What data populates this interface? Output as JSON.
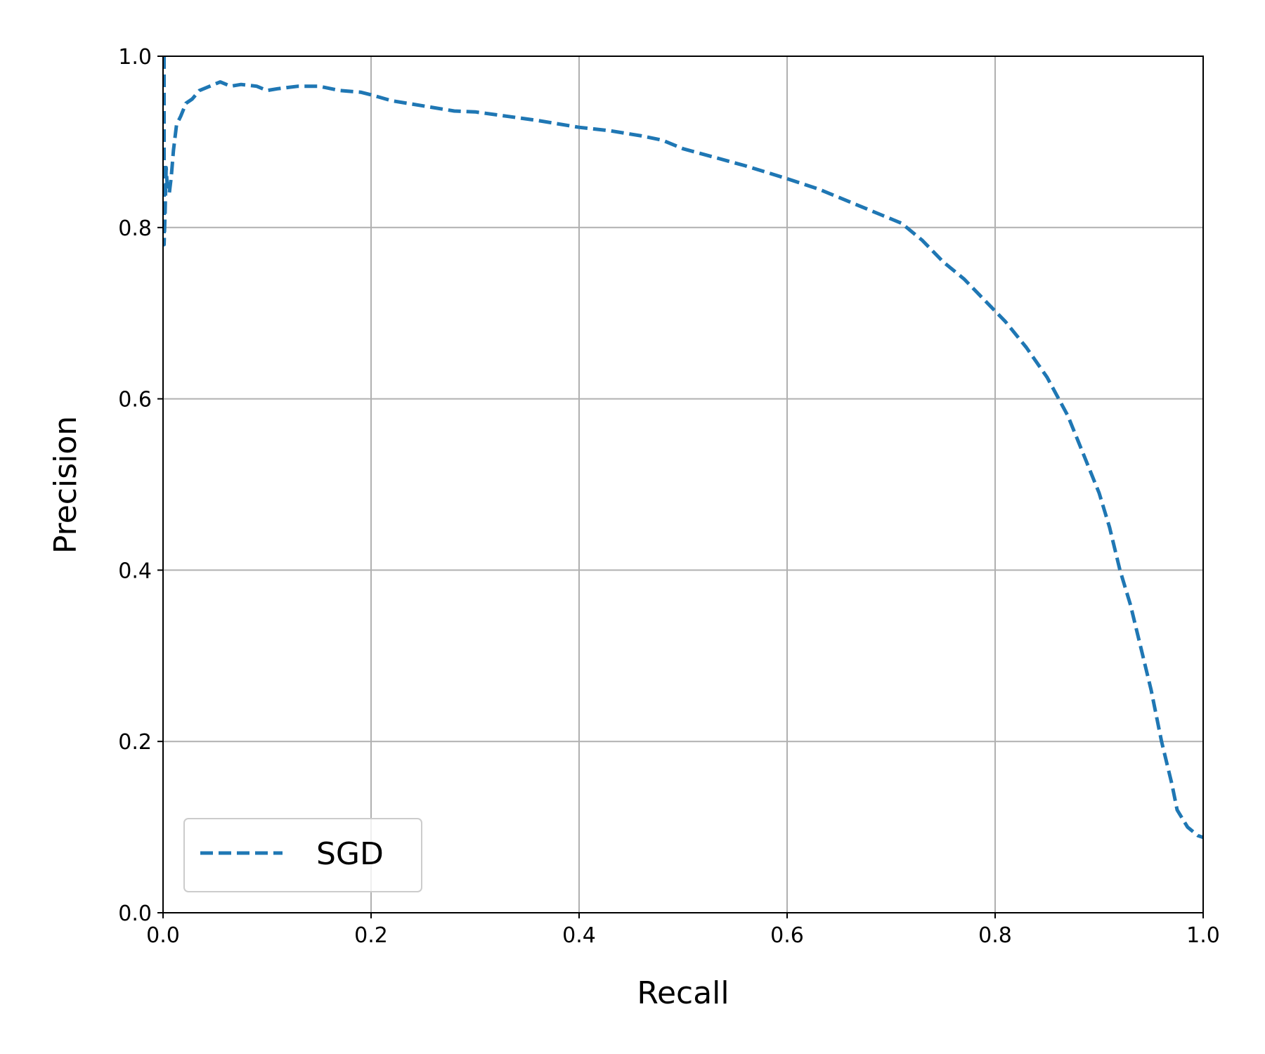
{
  "chart_data": {
    "type": "line",
    "title": "",
    "xlabel": "Recall",
    "ylabel": "Precision",
    "xlim": [
      0.0,
      1.0
    ],
    "ylim": [
      0.0,
      1.0
    ],
    "xticks": [
      "0.0",
      "0.2",
      "0.4",
      "0.6",
      "0.8",
      "1.0"
    ],
    "yticks": [
      "0.0",
      "0.2",
      "0.4",
      "0.6",
      "0.8",
      "1.0"
    ],
    "grid": true,
    "legend": "lower-left",
    "series": [
      {
        "name": "SGD",
        "color": "#1f77b4",
        "style": "dashed",
        "x": [
          0.001,
          0.001,
          0.001,
          0.001,
          0.002,
          0.003,
          0.004,
          0.006,
          0.008,
          0.01,
          0.013,
          0.017,
          0.022,
          0.028,
          0.035,
          0.045,
          0.055,
          0.065,
          0.075,
          0.09,
          0.1,
          0.11,
          0.13,
          0.15,
          0.17,
          0.19,
          0.2,
          0.22,
          0.25,
          0.28,
          0.3,
          0.33,
          0.36,
          0.4,
          0.43,
          0.46,
          0.48,
          0.5,
          0.53,
          0.56,
          0.6,
          0.63,
          0.66,
          0.69,
          0.71,
          0.73,
          0.75,
          0.77,
          0.79,
          0.81,
          0.83,
          0.85,
          0.87,
          0.88,
          0.89,
          0.9,
          0.91,
          0.92,
          0.93,
          0.94,
          0.95,
          0.96,
          0.97,
          0.975,
          0.98,
          0.985,
          0.99,
          0.995,
          1.0
        ],
        "y": [
          1.0,
          0.9,
          0.82,
          0.78,
          0.82,
          0.87,
          0.85,
          0.84,
          0.86,
          0.89,
          0.92,
          0.93,
          0.945,
          0.95,
          0.96,
          0.965,
          0.97,
          0.965,
          0.967,
          0.965,
          0.96,
          0.962,
          0.965,
          0.965,
          0.96,
          0.958,
          0.955,
          0.948,
          0.942,
          0.936,
          0.935,
          0.93,
          0.925,
          0.917,
          0.913,
          0.907,
          0.902,
          0.892,
          0.882,
          0.872,
          0.857,
          0.845,
          0.83,
          0.815,
          0.805,
          0.785,
          0.76,
          0.74,
          0.715,
          0.69,
          0.66,
          0.625,
          0.58,
          0.55,
          0.52,
          0.49,
          0.45,
          0.4,
          0.36,
          0.31,
          0.26,
          0.2,
          0.15,
          0.12,
          0.11,
          0.1,
          0.095,
          0.09,
          0.088
        ]
      }
    ]
  }
}
